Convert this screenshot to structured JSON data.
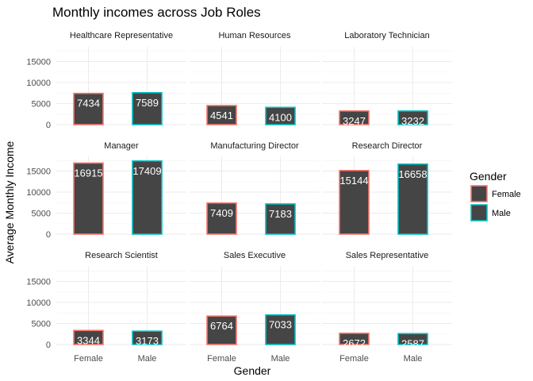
{
  "chart_data": {
    "type": "bar",
    "title": "Monthly incomes across Job Roles",
    "xlabel": "Gender",
    "ylabel": "Average Monthly Income",
    "categories": [
      "Female",
      "Male"
    ],
    "ylim": [
      0,
      18500
    ],
    "yticks": [
      0,
      5000,
      10000,
      15000
    ],
    "grid": true,
    "bar_fill": "#454545",
    "legend": {
      "title": "Gender",
      "position": "right",
      "items": [
        {
          "label": "Female",
          "color": "#F8766D"
        },
        {
          "label": "Male",
          "color": "#00BFC4"
        }
      ]
    },
    "facets": [
      {
        "name": "Healthcare Representative",
        "values": [
          7434,
          7589
        ]
      },
      {
        "name": "Human Resources",
        "values": [
          4541,
          4100
        ]
      },
      {
        "name": "Laboratory Technician",
        "values": [
          3247,
          3232
        ]
      },
      {
        "name": "Manager",
        "values": [
          16915,
          17409
        ]
      },
      {
        "name": "Manufacturing Director",
        "values": [
          7409,
          7183
        ]
      },
      {
        "name": "Research Director",
        "values": [
          15144,
          16658
        ]
      },
      {
        "name": "Research Scientist",
        "values": [
          3344,
          3173
        ]
      },
      {
        "name": "Sales Executive",
        "values": [
          6764,
          7033
        ]
      },
      {
        "name": "Sales Representative",
        "values": [
          2672,
          2587
        ]
      }
    ]
  }
}
